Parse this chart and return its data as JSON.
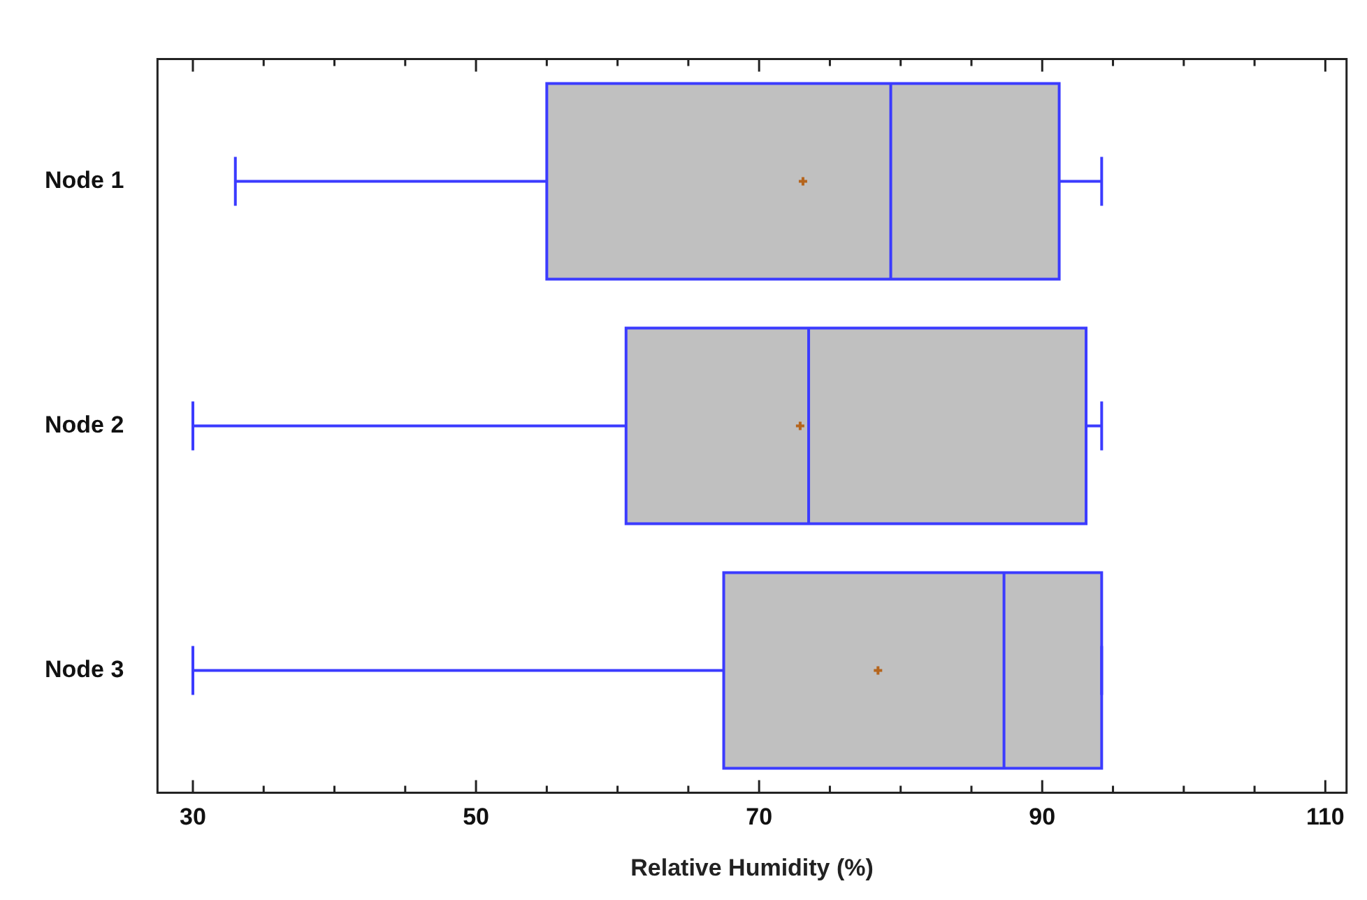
{
  "chart_data": {
    "type": "box",
    "orientation": "horizontal",
    "xlabel": "Relative Humidity (%)",
    "categories": [
      "Node 1",
      "Node 2",
      "Node 3"
    ],
    "xlim": [
      27.5,
      111.5
    ],
    "xticks": [
      30,
      {
        "value": 35,
        "label": null
      },
      {
        "value": 40,
        "label": null
      },
      {
        "value": 45,
        "label": null
      },
      50,
      {
        "value": 55,
        "label": null
      },
      {
        "value": 60,
        "label": null
      },
      {
        "value": 65,
        "label": null
      },
      70,
      {
        "value": 75,
        "label": null
      },
      {
        "value": 80,
        "label": null
      },
      {
        "value": 85,
        "label": null
      },
      90,
      {
        "value": 95,
        "label": null
      },
      {
        "value": 100,
        "label": null
      },
      {
        "value": 105,
        "label": null
      },
      110
    ],
    "grid": false,
    "series": [
      {
        "color": "#c0c0c0",
        "boxes": [
          {
            "low": 33,
            "q1": 55,
            "median": 79.3,
            "q3": 91.2,
            "high": 94.2,
            "mean": 73.1
          },
          {
            "low": 30,
            "q1": 60.6,
            "median": 73.5,
            "q3": 93.1,
            "high": 94.2,
            "mean": 72.9
          },
          {
            "low": 30,
            "q1": 67.5,
            "median": 87.3,
            "q3": 94.2,
            "high": 94.2,
            "mean": 78.4
          }
        ]
      }
    ]
  }
}
